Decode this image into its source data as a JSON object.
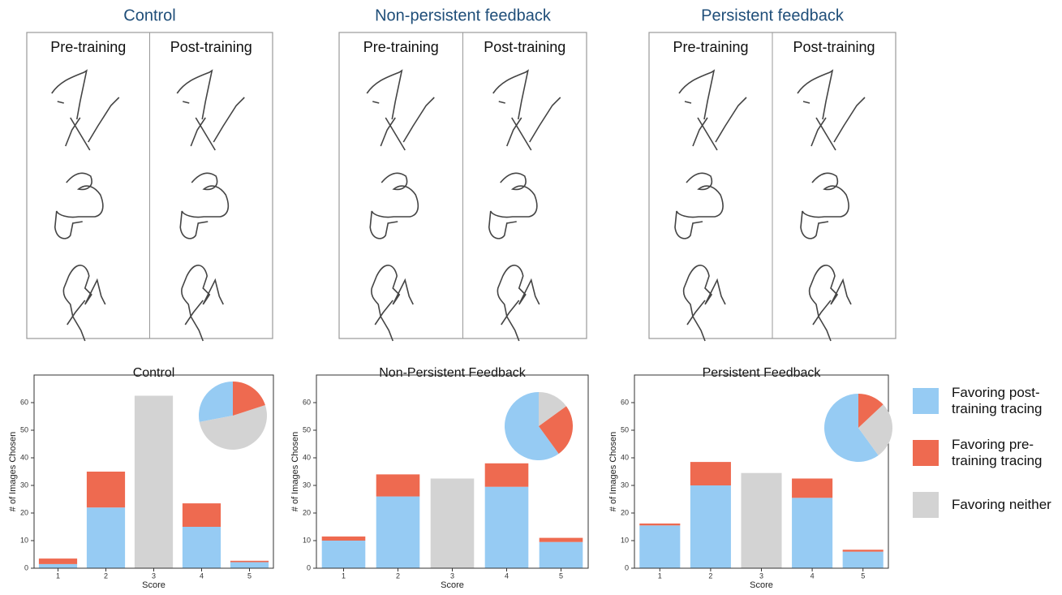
{
  "panels": [
    {
      "title": "Control",
      "columns": [
        "Pre-training",
        "Post-training"
      ]
    },
    {
      "title": "Non-persistent feedback",
      "columns": [
        "Pre-training",
        "Post-training"
      ]
    },
    {
      "title": "Persistent feedback",
      "columns": [
        "Pre-training",
        "Post-training"
      ]
    }
  ],
  "legend": [
    {
      "label": "Favoring post-training tracing",
      "color": "#96cbf3"
    },
    {
      "label": "Favoring pre-training tracing",
      "color": "#ee6a50"
    },
    {
      "label": "Favoring neither",
      "color": "#d3d3d3"
    }
  ],
  "chart_data": [
    {
      "type": "bar",
      "title": "Control",
      "xlabel": "Score",
      "ylabel": "# of Images Chosen",
      "categories": [
        "1",
        "2",
        "3",
        "4",
        "5"
      ],
      "ylim": [
        0,
        70
      ],
      "yticks": [
        0,
        10,
        20,
        30,
        40,
        50,
        60
      ],
      "series": [
        {
          "color": "#96cbf3",
          "values": [
            1.5,
            22,
            null,
            15,
            2.2
          ]
        },
        {
          "color": "#ee6a50",
          "values": [
            2,
            13,
            null,
            8.5,
            0.5
          ]
        },
        {
          "color": "#d3d3d3",
          "values": [
            null,
            null,
            62.5,
            null,
            null
          ]
        }
      ],
      "pie": [
        {
          "color": "#96cbf3",
          "value": 28
        },
        {
          "color": "#d3d3d3",
          "value": 52
        },
        {
          "color": "#ee6a50",
          "value": 20
        }
      ]
    },
    {
      "type": "bar",
      "title": "Non-Persistent Feedback",
      "xlabel": "Score",
      "ylabel": "# of Images Chosen",
      "categories": [
        "1",
        "2",
        "3",
        "4",
        "5"
      ],
      "ylim": [
        0,
        70
      ],
      "yticks": [
        0,
        10,
        20,
        30,
        40,
        50,
        60
      ],
      "series": [
        {
          "color": "#96cbf3",
          "values": [
            10,
            26,
            null,
            29.5,
            9.5
          ]
        },
        {
          "color": "#ee6a50",
          "values": [
            1.5,
            8,
            null,
            8.5,
            1.5
          ]
        },
        {
          "color": "#d3d3d3",
          "values": [
            null,
            null,
            32.5,
            null,
            null
          ]
        }
      ],
      "pie": [
        {
          "color": "#96cbf3",
          "value": 60
        },
        {
          "color": "#ee6a50",
          "value": 25
        },
        {
          "color": "#d3d3d3",
          "value": 15
        }
      ]
    },
    {
      "type": "bar",
      "title": "Persistent Feedback",
      "xlabel": "Score",
      "ylabel": "# of Images Chosen",
      "categories": [
        "1",
        "2",
        "3",
        "4",
        "5"
      ],
      "ylim": [
        0,
        70
      ],
      "yticks": [
        0,
        10,
        20,
        30,
        40,
        50,
        60
      ],
      "series": [
        {
          "color": "#96cbf3",
          "values": [
            15.5,
            30,
            null,
            25.5,
            6
          ]
        },
        {
          "color": "#ee6a50",
          "values": [
            0.7,
            8.5,
            null,
            7,
            0.7
          ]
        },
        {
          "color": "#d3d3d3",
          "values": [
            null,
            null,
            34.5,
            null,
            null
          ]
        }
      ],
      "pie": [
        {
          "color": "#96cbf3",
          "value": 60
        },
        {
          "color": "#d3d3d3",
          "value": 27
        },
        {
          "color": "#ee6a50",
          "value": 13
        }
      ]
    }
  ]
}
